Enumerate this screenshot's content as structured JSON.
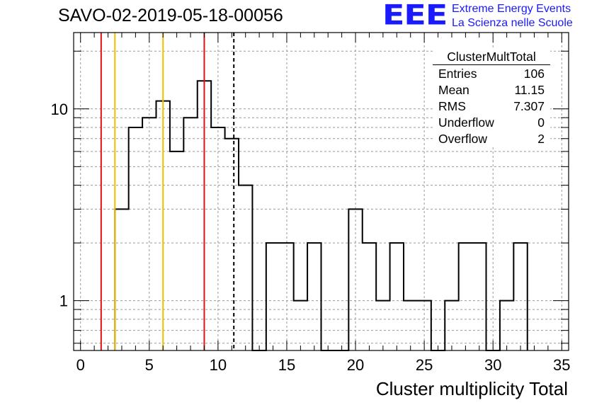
{
  "title": "SAVO-02-2019-05-18-00056",
  "logo": {
    "mark": "EEE",
    "line1": "Extreme Energy Events",
    "line2": "La Scienza nelle Scuole",
    "color": "#1a1aff"
  },
  "stats": {
    "title": "ClusterMultTotal",
    "rows": [
      {
        "label": "Entries",
        "value": "106"
      },
      {
        "label": "Mean",
        "value": "11.15"
      },
      {
        "label": "RMS",
        "value": "7.307"
      },
      {
        "label": "Underflow",
        "value": "0"
      },
      {
        "label": "Overflow",
        "value": "2"
      }
    ]
  },
  "chart_data": {
    "type": "histogram",
    "xlabel": "Cluster multiplicity Total",
    "ylabel": "",
    "xlim": [
      -0.5,
      35.5
    ],
    "ylim": [
      0.55,
      25
    ],
    "yscale": "log",
    "grid": true,
    "xticks": [
      0,
      5,
      10,
      15,
      20,
      25,
      30,
      35
    ],
    "yticks": [
      1,
      10
    ],
    "bins": {
      "lower_edges": [
        2.5,
        3.5,
        4.5,
        5.5,
        6.5,
        7.5,
        8.5,
        9.5,
        10.5,
        11.5,
        12.5,
        13.5,
        14.5,
        15.5,
        16.5,
        17.5,
        18.5,
        19.5,
        20.5,
        21.5,
        22.5,
        23.5,
        24.5,
        25.5,
        26.5,
        27.5,
        28.5,
        29.5,
        30.5,
        31.5
      ],
      "counts": [
        3,
        8,
        9,
        11,
        6,
        9,
        14,
        8,
        7,
        4,
        0,
        2,
        2,
        1,
        2,
        0,
        0,
        3,
        2,
        1,
        2,
        1,
        1,
        0,
        1,
        2,
        2,
        0,
        1,
        2
      ],
      "width": 1
    },
    "vertical_lines": [
      {
        "x": 1.5,
        "color": "#e01010",
        "style": "solid"
      },
      {
        "x": 2.5,
        "color": "#f0c000",
        "style": "solid"
      },
      {
        "x": 6.0,
        "color": "#f0c000",
        "style": "solid"
      },
      {
        "x": 9.0,
        "color": "#e01010",
        "style": "solid"
      },
      {
        "x": 11.15,
        "color": "#000000",
        "style": "dashed"
      }
    ],
    "colors": {
      "histogram": "#000000",
      "grid": "#999999",
      "frame": "#000000"
    }
  }
}
